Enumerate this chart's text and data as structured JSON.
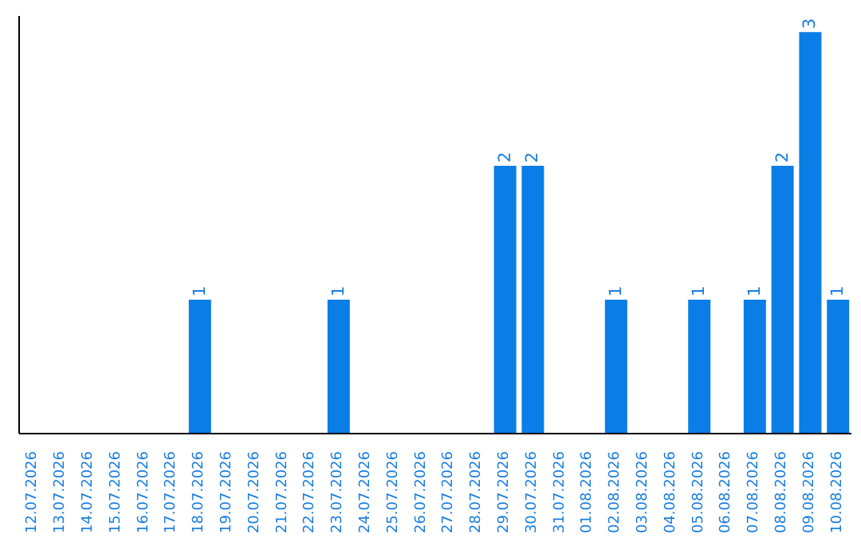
{
  "chart_data": {
    "type": "bar",
    "categories": [
      "12.07.2026",
      "13.07.2026",
      "14.07.2026",
      "15.07.2026",
      "16.07.2026",
      "17.07.2026",
      "18.07.2026",
      "19.07.2026",
      "20.07.2026",
      "21.07.2026",
      "22.07.2026",
      "23.07.2026",
      "24.07.2026",
      "25.07.2026",
      "26.07.2026",
      "27.07.2026",
      "28.07.2026",
      "29.07.2026",
      "30.07.2026",
      "31.07.2026",
      "01.08.2026",
      "02.08.2026",
      "03.08.2026",
      "04.08.2026",
      "05.08.2026",
      "06.08.2026",
      "07.08.2026",
      "08.08.2026",
      "09.08.2026",
      "10.08.2026"
    ],
    "values": [
      0,
      0,
      0,
      0,
      0,
      0,
      1,
      0,
      0,
      0,
      0,
      1,
      0,
      0,
      0,
      0,
      0,
      2,
      2,
      0,
      0,
      1,
      0,
      0,
      1,
      0,
      1,
      2,
      3,
      1
    ],
    "value_labels": [
      null,
      null,
      null,
      null,
      null,
      null,
      "1",
      null,
      null,
      null,
      null,
      "1",
      null,
      null,
      null,
      null,
      null,
      "2",
      "2",
      null,
      null,
      "1",
      null,
      null,
      "1",
      null,
      "1",
      "2",
      "3",
      "1"
    ],
    "color": "#0a7de6",
    "tick_labels": "x",
    "grid": false,
    "legend": false
  }
}
